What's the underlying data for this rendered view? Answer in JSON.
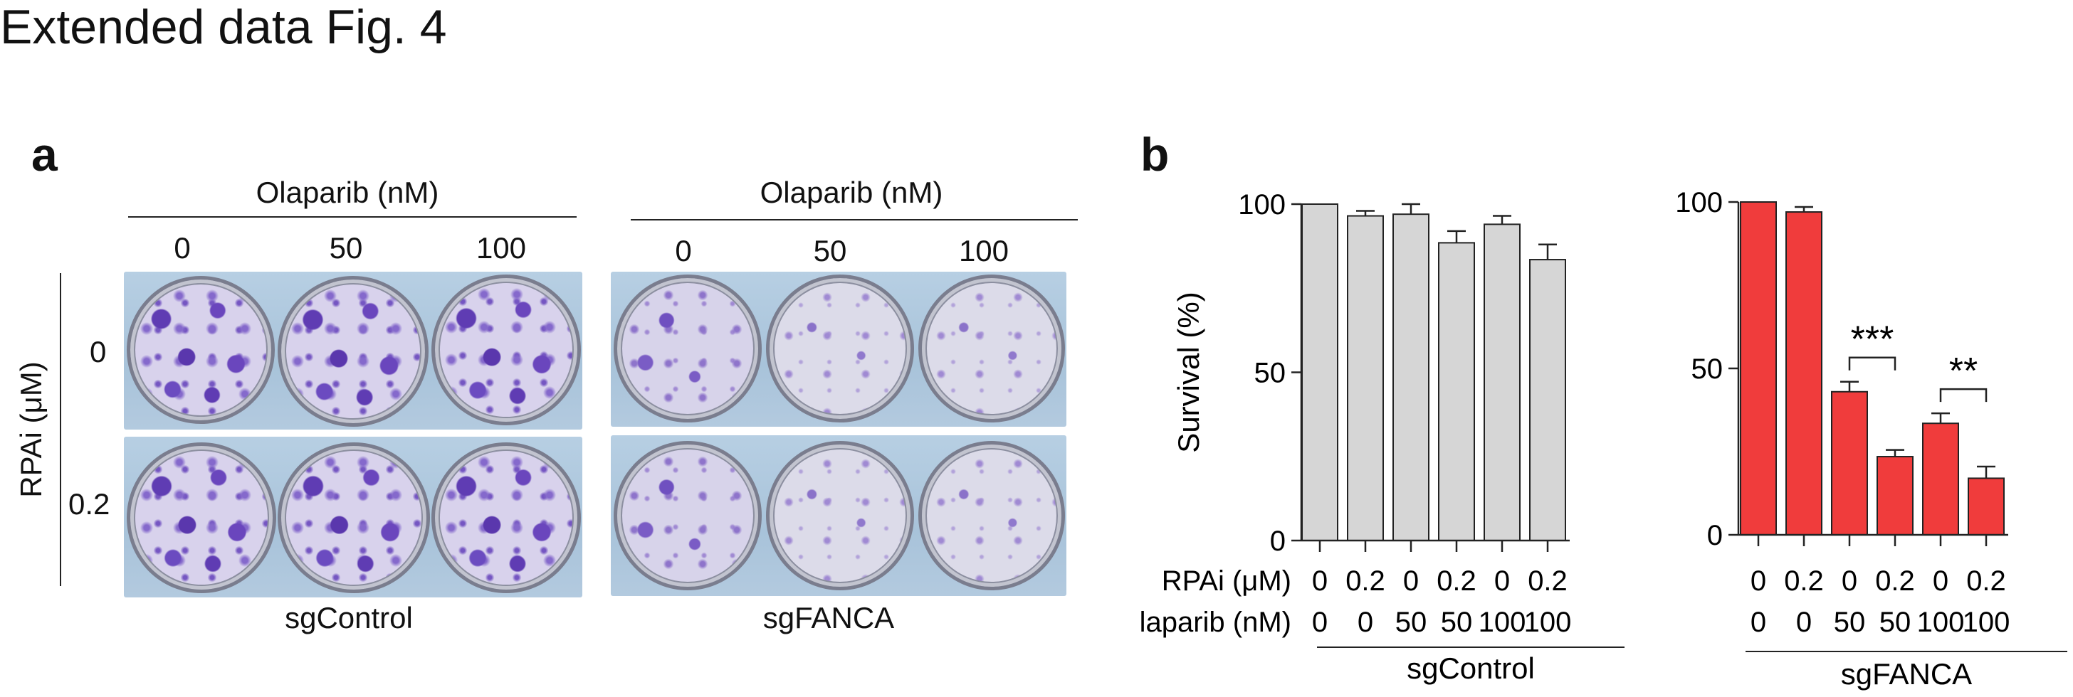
{
  "figure_title": "Extended data Fig. 4",
  "panel_a": {
    "letter": "a",
    "treatment_title": "Olaparib (nM)",
    "concentrations": [
      "0",
      "50",
      "100"
    ],
    "row_axis_label": "RPAi (μM)",
    "row_labels": [
      "0",
      "0.2"
    ],
    "group_labels": [
      "sgControl",
      "sgFANCA"
    ]
  },
  "panel_b": {
    "letter": "b"
  },
  "chart_data": [
    {
      "type": "bar",
      "group": "sgControl",
      "ylabel": "Survival (%)",
      "ylim": [
        0,
        100
      ],
      "yticks": [
        "0",
        "50",
        "100"
      ],
      "bar_color": "#d6d6d6",
      "values": [
        100,
        96.5,
        97,
        88.5,
        94,
        83.5
      ],
      "errors": [
        0,
        1.5,
        3,
        3.5,
        2.5,
        4.5
      ],
      "row1_title": "RPAi (μM)",
      "row1": [
        "0",
        "0.2",
        "0",
        "0.2",
        "0",
        "0.2"
      ],
      "row2_title": "Olaparib (nM)",
      "row2": [
        "0",
        "0",
        "50",
        "50",
        "100",
        "100"
      ],
      "group_label": "sgControl"
    },
    {
      "type": "bar",
      "group": "sgFANCA",
      "ylim": [
        0,
        100
      ],
      "yticks": [
        "0",
        "50",
        "100"
      ],
      "bar_color": "#f03c3c",
      "values": [
        100,
        97,
        43,
        23.5,
        33.5,
        17
      ],
      "errors": [
        0,
        1.5,
        3,
        2,
        3,
        3.5
      ],
      "row1": [
        "0",
        "0.2",
        "0",
        "0.2",
        "0",
        "0.2"
      ],
      "row2": [
        "0",
        "0",
        "50",
        "50",
        "100",
        "100"
      ],
      "group_label": "sgFANCA",
      "significance": [
        {
          "pair": [
            2,
            3
          ],
          "label": "***"
        },
        {
          "pair": [
            4,
            5
          ],
          "label": "**"
        }
      ]
    }
  ]
}
